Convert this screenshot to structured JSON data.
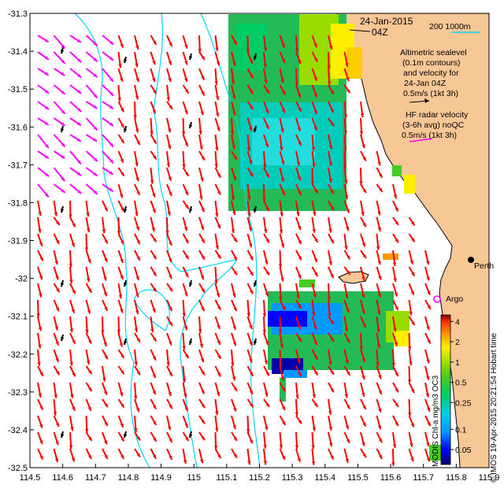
{
  "map": {
    "date_line": "24-Jan-2015",
    "time_line": "04Z",
    "scale_label": "200  1000m",
    "legend_altimetry": [
      "Altimetric sealevel",
      "(0.1m contours)",
      "and velocity for",
      "24-Jan 04Z",
      "0.5m/s (1kt 3h)"
    ],
    "legend_radar": [
      "HF radar velocity",
      "(3-6h avg) noQC",
      "0.5m/s (1kt 3h)"
    ],
    "place_perth": "Perth",
    "place_argo": "Argo",
    "colorbar_label": "MODIS Chl-a mg/m3 OC3",
    "credit": "© IMOS 19-Apr-2015 20:21:54 Hobart time",
    "colorbar_ticks": [
      "4",
      "2",
      "1",
      "0.5",
      "0.25",
      "0.1",
      "0.05"
    ],
    "colorbar_tick_values": [
      4,
      2,
      1,
      0.5,
      0.25,
      0.1,
      0.05
    ],
    "colorbar_range": [
      0.03,
      5
    ],
    "lon_ticks": [
      "114.5",
      "114.6",
      "114.7",
      "114.8",
      "114.9",
      "115",
      "115.1",
      "115.2",
      "115.3",
      "115.4",
      "115.5",
      "115.6",
      "115.7",
      "115.8",
      "115.9"
    ],
    "lat_ticks": [
      "-31.3",
      "-31.4",
      "-31.5",
      "-31.6",
      "-31.7",
      "-31.8",
      "-31.9",
      "-32",
      "-32.1",
      "-32.2",
      "-32.3",
      "-32.4",
      "-32.5"
    ],
    "lon_range": [
      114.5,
      115.9
    ],
    "lat_range": [
      -32.5,
      -31.3
    ],
    "colors": {
      "land": "#f8c796",
      "ocean": "#ffffff",
      "bathymetry": "#00d8ff",
      "radar_arrow": "#ff0000",
      "altimetry_arrow": "#ff00ff",
      "argo_marker": "#ff00ff",
      "colorbar": [
        "#000066",
        "#0000ff",
        "#0099ff",
        "#00ccee",
        "#00cc66",
        "#44cc22",
        "#99dd00",
        "#ffee00",
        "#ff9900",
        "#ff3300",
        "#880000"
      ]
    }
  }
}
